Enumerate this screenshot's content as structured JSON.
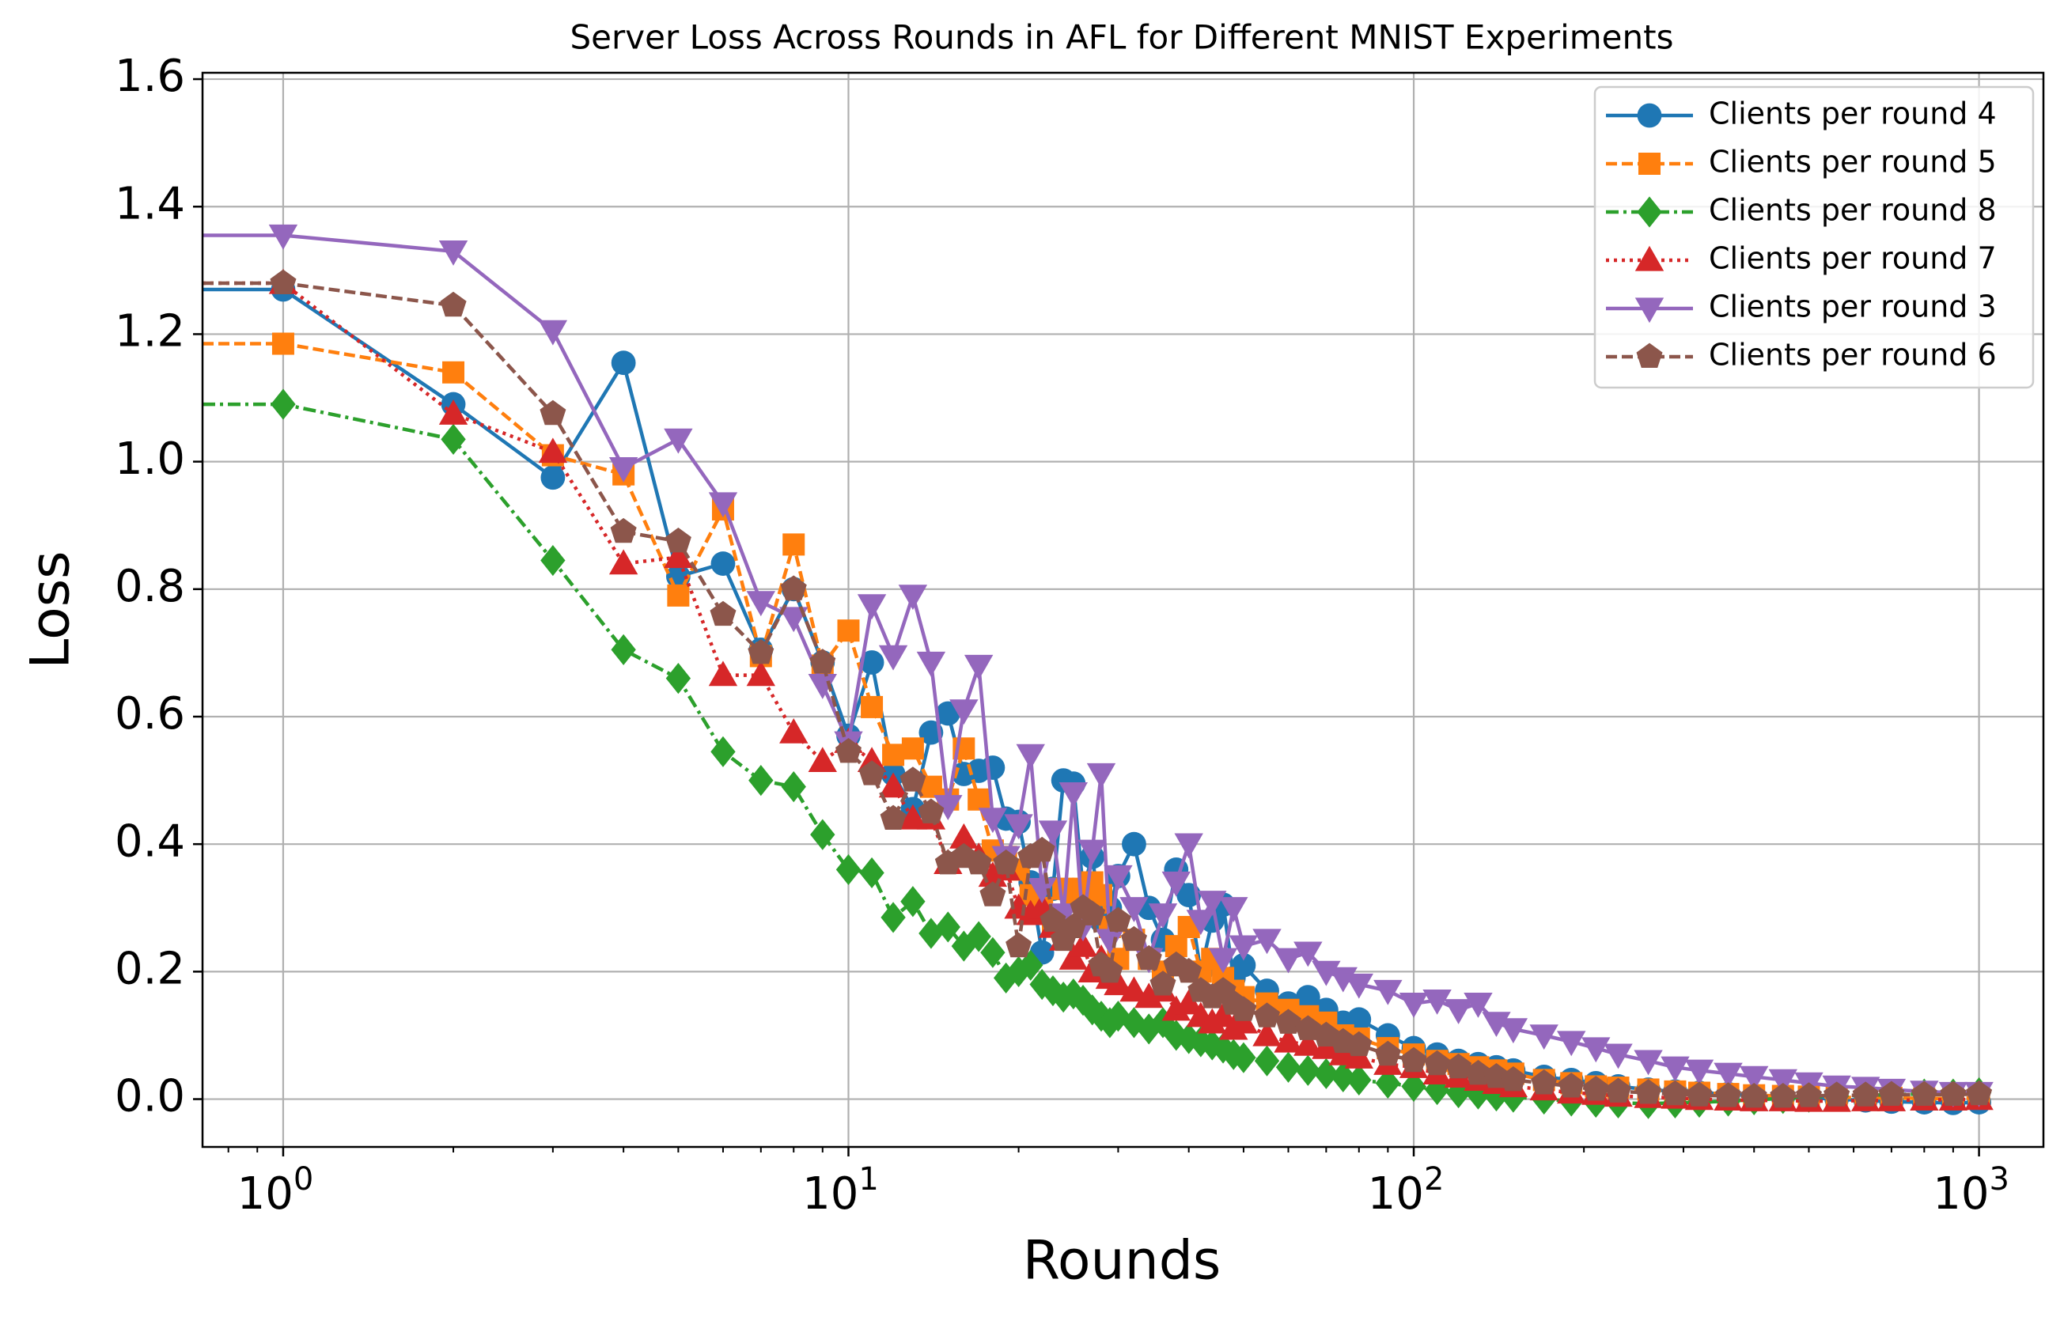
{
  "chart_data": {
    "type": "line",
    "title": "Server Loss Across Rounds in AFL for Different MNIST Experiments",
    "xlabel": "Rounds",
    "ylabel": "Loss",
    "xscale": "log",
    "xlim": [
      0.72,
      1300
    ],
    "ylim": [
      -0.075,
      1.61
    ],
    "grid": true,
    "legend_position": "top-right",
    "x_ticks": [
      {
        "value": 1,
        "base": "10",
        "exp": "0"
      },
      {
        "value": 10,
        "base": "10",
        "exp": "1"
      },
      {
        "value": 100,
        "base": "10",
        "exp": "2"
      },
      {
        "value": 1000,
        "base": "10",
        "exp": "3"
      }
    ],
    "y_ticks": [
      {
        "value": 0.0,
        "label": "0.0"
      },
      {
        "value": 0.2,
        "label": "0.2"
      },
      {
        "value": 0.4,
        "label": "0.4"
      },
      {
        "value": 0.6,
        "label": "0.6"
      },
      {
        "value": 0.8,
        "label": "0.8"
      },
      {
        "value": 1.0,
        "label": "1.0"
      },
      {
        "value": 1.2,
        "label": "1.2"
      },
      {
        "value": 1.4,
        "label": "1.4"
      },
      {
        "value": 1.6,
        "label": "1.6"
      }
    ],
    "series": [
      {
        "name": "Clients per round 4",
        "color": "#1f77b4",
        "marker": "circle",
        "linestyle": "solid",
        "x": [
          0.72,
          1,
          2,
          3,
          4,
          5,
          6,
          7,
          8,
          9,
          10,
          11,
          12,
          13,
          14,
          15,
          16,
          17,
          18,
          19,
          20,
          21,
          22,
          23,
          24,
          25,
          26,
          27,
          28,
          29,
          30,
          32,
          34,
          36,
          38,
          40,
          42,
          44,
          46,
          48,
          50,
          55,
          60,
          65,
          70,
          75,
          80,
          90,
          100,
          110,
          120,
          130,
          140,
          150,
          170,
          190,
          210,
          230,
          260,
          290,
          320,
          360,
          400,
          450,
          500,
          560,
          630,
          700,
          800,
          900,
          1000
        ],
        "y": [
          1.27,
          1.27,
          1.09,
          0.975,
          1.155,
          0.82,
          0.84,
          0.705,
          0.8,
          0.685,
          0.57,
          0.685,
          0.51,
          0.455,
          0.575,
          0.605,
          0.51,
          0.515,
          0.52,
          0.44,
          0.435,
          0.34,
          0.23,
          0.33,
          0.5,
          0.495,
          0.33,
          0.38,
          0.28,
          0.3,
          0.35,
          0.4,
          0.3,
          0.25,
          0.36,
          0.32,
          0.2,
          0.28,
          0.305,
          0.19,
          0.21,
          0.17,
          0.15,
          0.16,
          0.14,
          0.12,
          0.125,
          0.1,
          0.08,
          0.07,
          0.06,
          0.055,
          0.05,
          0.045,
          0.035,
          0.03,
          0.025,
          0.02,
          0.015,
          0.012,
          0.01,
          0.008,
          0.005,
          0.003,
          0.002,
          0.0,
          -0.002,
          -0.004,
          -0.005,
          -0.006,
          -0.005
        ]
      },
      {
        "name": "Clients per round 5",
        "color": "#ff7f0e",
        "marker": "square",
        "linestyle": "dashed",
        "x": [
          0.72,
          1,
          2,
          3,
          4,
          5,
          6,
          7,
          8,
          9,
          10,
          11,
          12,
          13,
          14,
          15,
          16,
          17,
          18,
          19,
          20,
          21,
          22,
          23,
          24,
          25,
          26,
          27,
          28,
          29,
          30,
          32,
          34,
          36,
          38,
          40,
          42,
          44,
          46,
          48,
          50,
          55,
          60,
          65,
          70,
          75,
          80,
          90,
          100,
          110,
          120,
          130,
          140,
          150,
          170,
          190,
          210,
          230,
          260,
          290,
          320,
          360,
          400,
          450,
          500,
          560,
          630,
          700,
          800,
          900,
          1000
        ],
        "y": [
          1.185,
          1.185,
          1.14,
          1.01,
          0.98,
          0.79,
          0.925,
          0.695,
          0.87,
          0.68,
          0.735,
          0.615,
          0.54,
          0.55,
          0.49,
          0.47,
          0.55,
          0.47,
          0.39,
          0.38,
          0.36,
          0.32,
          0.3,
          0.28,
          0.33,
          0.31,
          0.33,
          0.34,
          0.32,
          0.27,
          0.22,
          0.25,
          0.22,
          0.2,
          0.24,
          0.27,
          0.2,
          0.22,
          0.19,
          0.17,
          0.16,
          0.15,
          0.14,
          0.13,
          0.12,
          0.1,
          0.095,
          0.08,
          0.07,
          0.06,
          0.055,
          0.05,
          0.045,
          0.04,
          0.03,
          0.025,
          0.02,
          0.018,
          0.015,
          0.012,
          0.01,
          0.008,
          0.006,
          0.005,
          0.004,
          0.003,
          0.002,
          0.002,
          0.001,
          0.001,
          0.002
        ]
      },
      {
        "name": "Clients per round 8",
        "color": "#2ca02c",
        "marker": "diamond",
        "linestyle": "dashdot",
        "x": [
          0.72,
          1,
          2,
          3,
          4,
          5,
          6,
          7,
          8,
          9,
          10,
          11,
          12,
          13,
          14,
          15,
          16,
          17,
          18,
          19,
          20,
          21,
          22,
          23,
          24,
          25,
          26,
          27,
          28,
          29,
          30,
          32,
          34,
          36,
          38,
          40,
          42,
          44,
          46,
          48,
          50,
          55,
          60,
          65,
          70,
          75,
          80,
          90,
          100,
          110,
          120,
          130,
          140,
          150,
          170,
          190,
          210,
          230,
          260,
          290,
          320,
          360,
          400,
          450,
          500,
          560,
          630,
          700,
          800,
          900,
          1000
        ],
        "y": [
          1.09,
          1.09,
          1.035,
          0.845,
          0.705,
          0.66,
          0.545,
          0.5,
          0.49,
          0.415,
          0.36,
          0.355,
          0.285,
          0.31,
          0.26,
          0.27,
          0.24,
          0.255,
          0.23,
          0.19,
          0.2,
          0.21,
          0.18,
          0.17,
          0.16,
          0.165,
          0.155,
          0.14,
          0.13,
          0.12,
          0.13,
          0.12,
          0.11,
          0.12,
          0.1,
          0.095,
          0.09,
          0.085,
          0.08,
          0.07,
          0.065,
          0.06,
          0.05,
          0.045,
          0.04,
          0.035,
          0.03,
          0.025,
          0.02,
          0.015,
          0.01,
          0.008,
          0.005,
          0.003,
          0.0,
          -0.003,
          -0.005,
          -0.006,
          -0.007,
          -0.006,
          -0.005,
          -0.003,
          -0.001,
          0.001,
          0.003,
          0.005,
          0.006,
          0.007,
          0.008,
          0.008,
          0.01
        ]
      },
      {
        "name": "Clients per round 7",
        "color": "#d62728",
        "marker": "triangle-up",
        "linestyle": "dotted",
        "x": [
          0.72,
          1,
          2,
          3,
          4,
          5,
          6,
          7,
          8,
          9,
          10,
          11,
          12,
          13,
          14,
          15,
          16,
          17,
          18,
          19,
          20,
          21,
          22,
          23,
          24,
          25,
          26,
          27,
          28,
          29,
          30,
          32,
          34,
          36,
          38,
          40,
          42,
          44,
          46,
          48,
          50,
          55,
          60,
          65,
          70,
          75,
          80,
          90,
          100,
          110,
          120,
          130,
          140,
          150,
          170,
          190,
          210,
          230,
          260,
          290,
          320,
          360,
          400,
          450,
          500,
          560,
          630,
          700,
          800,
          900,
          1000
        ],
        "y": [
          1.28,
          1.28,
          1.075,
          1.015,
          0.84,
          0.85,
          0.665,
          0.665,
          0.575,
          0.53,
          0.56,
          0.53,
          0.49,
          0.44,
          0.44,
          0.37,
          0.41,
          0.38,
          0.35,
          0.36,
          0.3,
          0.29,
          0.3,
          0.27,
          0.25,
          0.22,
          0.24,
          0.2,
          0.22,
          0.19,
          0.18,
          0.17,
          0.16,
          0.17,
          0.14,
          0.15,
          0.13,
          0.12,
          0.13,
          0.11,
          0.12,
          0.1,
          0.09,
          0.085,
          0.08,
          0.07,
          0.065,
          0.055,
          0.05,
          0.04,
          0.035,
          0.03,
          0.025,
          0.02,
          0.015,
          0.01,
          0.008,
          0.005,
          0.003,
          0.002,
          0.0,
          -0.001,
          -0.002,
          -0.002,
          -0.003,
          -0.003,
          -0.002,
          -0.002,
          -0.001,
          -0.001,
          0.0
        ]
      },
      {
        "name": "Clients per round 3",
        "color": "#9467bd",
        "marker": "triangle-down",
        "linestyle": "solid",
        "x": [
          0.72,
          1,
          2,
          3,
          4,
          5,
          6,
          7,
          8,
          9,
          10,
          11,
          12,
          13,
          14,
          15,
          16,
          17,
          18,
          19,
          20,
          21,
          22,
          23,
          24,
          25,
          26,
          27,
          28,
          29,
          30,
          32,
          34,
          36,
          38,
          40,
          42,
          44,
          46,
          48,
          50,
          55,
          60,
          65,
          70,
          75,
          80,
          90,
          100,
          110,
          120,
          130,
          140,
          150,
          170,
          190,
          210,
          230,
          260,
          290,
          320,
          360,
          400,
          450,
          500,
          560,
          630,
          700,
          800,
          900,
          1000
        ],
        "y": [
          1.355,
          1.355,
          1.33,
          1.205,
          0.99,
          1.035,
          0.935,
          0.78,
          0.755,
          0.65,
          0.56,
          0.775,
          0.695,
          0.79,
          0.685,
          0.46,
          0.61,
          0.68,
          0.44,
          0.38,
          0.43,
          0.54,
          0.33,
          0.42,
          0.29,
          0.48,
          0.27,
          0.39,
          0.51,
          0.25,
          0.35,
          0.3,
          0.22,
          0.29,
          0.34,
          0.4,
          0.28,
          0.31,
          0.22,
          0.3,
          0.24,
          0.25,
          0.22,
          0.23,
          0.2,
          0.19,
          0.18,
          0.17,
          0.15,
          0.155,
          0.14,
          0.15,
          0.12,
          0.11,
          0.1,
          0.09,
          0.08,
          0.07,
          0.06,
          0.05,
          0.045,
          0.04,
          0.035,
          0.03,
          0.025,
          0.02,
          0.018,
          0.015,
          0.012,
          0.01,
          0.01
        ]
      },
      {
        "name": "Clients per round 6",
        "color": "#8c564b",
        "marker": "pentagon",
        "linestyle": "dashed",
        "x": [
          0.72,
          1,
          2,
          3,
          4,
          5,
          6,
          7,
          8,
          9,
          10,
          11,
          12,
          13,
          14,
          15,
          16,
          17,
          18,
          19,
          20,
          21,
          22,
          23,
          24,
          25,
          26,
          27,
          28,
          29,
          30,
          32,
          34,
          36,
          38,
          40,
          42,
          44,
          46,
          48,
          50,
          55,
          60,
          65,
          70,
          75,
          80,
          90,
          100,
          110,
          120,
          130,
          140,
          150,
          170,
          190,
          210,
          230,
          260,
          290,
          320,
          360,
          400,
          450,
          500,
          560,
          630,
          700,
          800,
          900,
          1000
        ],
        "y": [
          1.28,
          1.28,
          1.245,
          1.075,
          0.89,
          0.875,
          0.76,
          0.7,
          0.8,
          0.685,
          0.545,
          0.51,
          0.44,
          0.5,
          0.45,
          0.37,
          0.38,
          0.37,
          0.32,
          0.37,
          0.24,
          0.38,
          0.39,
          0.28,
          0.25,
          0.27,
          0.3,
          0.29,
          0.21,
          0.2,
          0.28,
          0.25,
          0.22,
          0.18,
          0.21,
          0.2,
          0.17,
          0.16,
          0.17,
          0.15,
          0.14,
          0.13,
          0.12,
          0.11,
          0.1,
          0.09,
          0.085,
          0.07,
          0.06,
          0.055,
          0.05,
          0.04,
          0.035,
          0.03,
          0.025,
          0.02,
          0.015,
          0.012,
          0.01,
          0.008,
          0.006,
          0.005,
          0.004,
          0.004,
          0.005,
          0.006,
          0.006,
          0.007,
          0.007,
          0.007,
          0.008
        ]
      }
    ]
  }
}
